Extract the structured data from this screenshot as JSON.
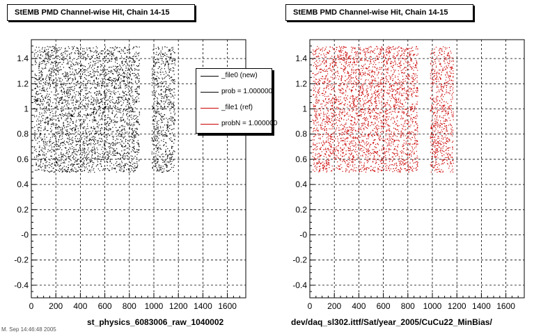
{
  "chart_data": [
    {
      "type": "scatter",
      "title": "StEMB PMD Channel-wise Hit, Chain 14-15",
      "xlabel": "st_physics_6083006_raw_1040002",
      "ylabel": "",
      "xlim": [
        0,
        1750
      ],
      "ylim": [
        -0.5,
        1.55
      ],
      "xticks": [
        "0",
        "200",
        "400",
        "600",
        "800",
        "1000",
        "1200",
        "1400",
        "1600"
      ],
      "yticks": [
        "-0.4",
        "-0.2",
        "-0",
        "0.2",
        "0.4",
        "0.6",
        "0.8",
        "1",
        "1.2",
        "1.4"
      ],
      "grid": true,
      "point_color": "#000000",
      "x_blocks": [
        [
          20,
          480
        ],
        [
          480,
          880
        ],
        [
          980,
          1170
        ]
      ],
      "y_range": [
        0.5,
        1.5
      ],
      "legend": {
        "placement": "top-right",
        "entries": [
          {
            "label": "_file0 (new)",
            "color": "#000000"
          },
          {
            "label": "prob = 1.000000",
            "color": "#000000"
          },
          {
            "label": "_file1 (ref)",
            "color": "#cc0000"
          },
          {
            "label": "probN = 1.000000",
            "color": "#cc0000"
          }
        ]
      }
    },
    {
      "type": "scatter",
      "title": "StEMB PMD Channel-wise Hit, Chain 14-15",
      "xlabel": "dev/daq_sl302.ittf/Sat/year_2005/CuCu22_MinBias/",
      "ylabel": "",
      "xlim": [
        0,
        1750
      ],
      "ylim": [
        -0.5,
        1.55
      ],
      "xticks": [
        "0",
        "200",
        "400",
        "600",
        "800",
        "1000",
        "1200",
        "1400",
        "1600"
      ],
      "yticks": [
        "-0.4",
        "-0.2",
        "-0",
        "0.2",
        "0.4",
        "0.6",
        "0.8",
        "1",
        "1.2",
        "1.4"
      ],
      "grid": true,
      "point_color": "#cc0000",
      "x_blocks": [
        [
          20,
          480
        ],
        [
          480,
          880
        ],
        [
          980,
          1170
        ]
      ],
      "y_range": [
        0.5,
        1.5
      ]
    }
  ],
  "footer": "M. Sep 14:46:48 2005"
}
